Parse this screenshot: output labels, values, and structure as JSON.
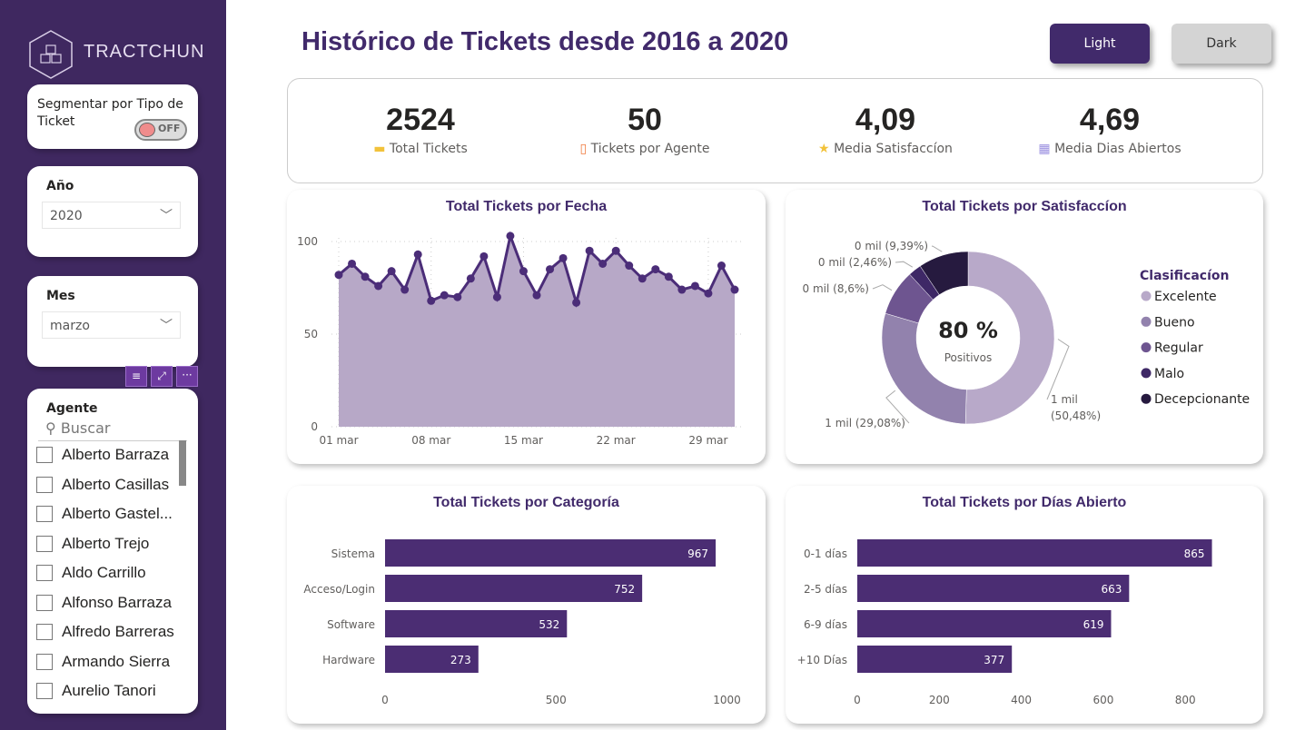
{
  "brand": {
    "name": "TRACTCHUN"
  },
  "header": {
    "title": "Histórico de Tickets desde 2016 a 2020",
    "buttons": [
      {
        "label": "Light",
        "active": true
      },
      {
        "label": "Dark",
        "active": false
      }
    ]
  },
  "colors": {
    "accent": "#412a6b",
    "sidebar": "#3f2860",
    "area": "#b7a8c7",
    "line": "#4b2d78"
  },
  "sidebar": {
    "toggle": {
      "label": "Segmentar por Tipo de Ticket",
      "state": "OFF"
    },
    "year": {
      "label": "Año",
      "value": "2020"
    },
    "month": {
      "label": "Mes",
      "value": "marzo"
    },
    "agents": {
      "label": "Agente",
      "search_placeholder": "Buscar",
      "items": [
        "Alberto Barraza",
        "Alberto Casillas",
        "Alberto Gastel...",
        "Alberto Trejo",
        "Aldo Carrillo",
        "Alfonso Barraza",
        "Alfredo Barreras",
        "Armando Sierra",
        "Aurelio Tanori"
      ]
    }
  },
  "kpis": [
    {
      "value": "2524",
      "label": "Total Tickets",
      "icon": "ticket-icon"
    },
    {
      "value": "50",
      "label": "Tickets por Agente",
      "icon": "phone-icon"
    },
    {
      "value": "4,09",
      "label": "Media Satisfaccíon",
      "icon": "star-icon"
    },
    {
      "value": "4,69",
      "label": "Media Dias Abiertos",
      "icon": "calendar-icon"
    }
  ],
  "chart_data": [
    {
      "type": "area",
      "title": "Total Tickets por Fecha",
      "x_ticks": [
        "01 mar",
        "08 mar",
        "15 mar",
        "22 mar",
        "29 mar"
      ],
      "y_ticks": [
        "0",
        "50",
        "100"
      ],
      "ylim": [
        0,
        105
      ],
      "grid": true,
      "x": [
        "01 mar",
        "02 mar",
        "03 mar",
        "04 mar",
        "05 mar",
        "06 mar",
        "07 mar",
        "08 mar",
        "09 mar",
        "10 mar",
        "11 mar",
        "12 mar",
        "13 mar",
        "14 mar",
        "15 mar",
        "16 mar",
        "17 mar",
        "18 mar",
        "19 mar",
        "20 mar",
        "21 mar",
        "22 mar",
        "23 mar",
        "24 mar",
        "25 mar",
        "26 mar",
        "27 mar",
        "28 mar",
        "29 mar",
        "30 mar",
        "31 mar"
      ],
      "values": [
        82,
        88,
        81,
        76,
        84,
        74,
        93,
        68,
        71,
        70,
        80,
        92,
        70,
        103,
        84,
        71,
        85,
        91,
        67,
        95,
        88,
        95,
        87,
        80,
        85,
        81,
        74,
        76,
        72,
        87,
        74
      ]
    },
    {
      "type": "pie",
      "title": "Total Tickets por Satisfaccíon",
      "center_value": "80 %",
      "center_label": "Positivos",
      "legend_title": "Clasificacíon",
      "legend": "right",
      "slices": [
        {
          "name": "Excelente",
          "pct": 50.48,
          "label": "1 mil (50,48%)",
          "color": "#b8a9c9"
        },
        {
          "name": "Bueno",
          "pct": 29.08,
          "label": "1 mil (29,08%)",
          "color": "#9282ad"
        },
        {
          "name": "Regular",
          "pct": 8.6,
          "label": "0 mil (8,6%)",
          "color": "#6e5590"
        },
        {
          "name": "Malo",
          "pct": 2.46,
          "label": "0 mil (2,46%)",
          "color": "#3e2866"
        },
        {
          "name": "Decepcionante",
          "pct": 9.39,
          "label": "0 mil (9,39%)",
          "color": "#261a3f"
        }
      ]
    },
    {
      "type": "bar",
      "title": "Total Tickets por Categoría",
      "categories": [
        "Sistema",
        "Acceso/Login",
        "Software",
        "Hardware"
      ],
      "values": [
        967,
        752,
        532,
        273
      ],
      "x_ticks": [
        "0",
        "500",
        "1000"
      ],
      "xlim": [
        0,
        1000
      ]
    },
    {
      "type": "bar",
      "title": "Total Tickets por Días Abierto",
      "categories": [
        "0-1 días",
        "2-5 días",
        "6-9 días",
        "+10 Días"
      ],
      "values": [
        865,
        663,
        619,
        377
      ],
      "x_ticks": [
        "0",
        "200",
        "400",
        "600",
        "800"
      ],
      "xlim": [
        0,
        880
      ]
    }
  ]
}
